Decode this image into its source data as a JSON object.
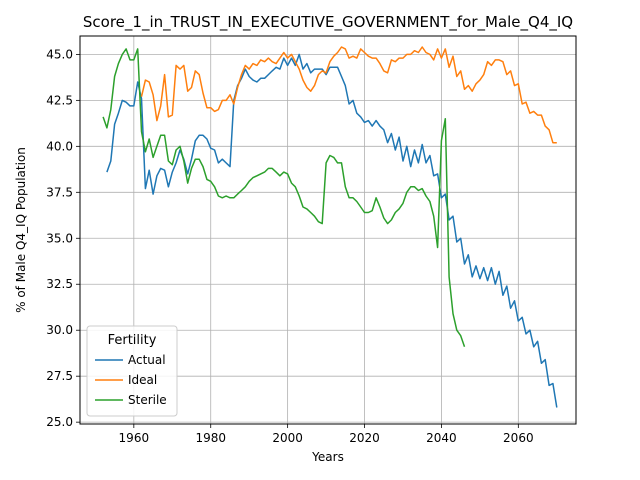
{
  "chart_data": {
    "type": "line",
    "title": "Score_1_in_TRUST_IN_EXECUTIVE_GOVERNMENT_for_Male_Q4_IQ",
    "xlabel": "Years",
    "ylabel": "% of Male Q4_IQ Population",
    "xlim": [
      1946,
      2075
    ],
    "ylim": [
      24.9,
      46.0
    ],
    "xticks": [
      1960,
      1980,
      2000,
      2020,
      2040,
      2060
    ],
    "yticks": [
      25.0,
      27.5,
      30.0,
      32.5,
      35.0,
      37.5,
      40.0,
      42.5,
      45.0
    ],
    "grid": true,
    "legend": {
      "title": "Fertility",
      "placement": "lower-left"
    },
    "series": [
      {
        "name": "Actual",
        "color": "#1f77b4",
        "x": [
          1953,
          1954,
          1955,
          1956,
          1957,
          1958,
          1959,
          1960,
          1961,
          1962,
          1963,
          1964,
          1965,
          1966,
          1967,
          1968,
          1969,
          1970,
          1971,
          1972,
          1973,
          1974,
          1975,
          1976,
          1977,
          1978,
          1979,
          1980,
          1981,
          1982,
          1983,
          1984,
          1985,
          1986,
          1987,
          1988,
          1989,
          1990,
          1991,
          1992,
          1993,
          1994,
          1995,
          1996,
          1997,
          1998,
          1999,
          2000,
          2001,
          2002,
          2003,
          2004,
          2005,
          2006,
          2007,
          2008,
          2009,
          2010,
          2011,
          2012,
          2013,
          2014,
          2015,
          2016,
          2017,
          2018,
          2019,
          2020,
          2021,
          2022,
          2023,
          2024,
          2025,
          2026,
          2027,
          2028,
          2029,
          2030,
          2031,
          2032,
          2033,
          2034,
          2035,
          2036,
          2037,
          2038,
          2039,
          2040,
          2041,
          2042,
          2043,
          2044,
          2045,
          2046,
          2047,
          2048,
          2049,
          2050,
          2051,
          2052,
          2053,
          2054,
          2055,
          2056,
          2057,
          2058,
          2059,
          2060,
          2061,
          2062,
          2063,
          2064,
          2065,
          2066,
          2067,
          2068,
          2069,
          2070
        ],
        "y": [
          38.6,
          39.2,
          41.2,
          41.8,
          42.5,
          42.4,
          42.2,
          42.2,
          43.5,
          42.6,
          37.7,
          38.7,
          37.4,
          38.4,
          38.8,
          38.7,
          37.8,
          38.6,
          39.1,
          39.8,
          39.3,
          38.5,
          39.3,
          40.3,
          40.6,
          40.6,
          40.4,
          39.9,
          39.8,
          39.1,
          39.3,
          39.1,
          38.9,
          42.5,
          43.3,
          43.7,
          44.2,
          43.8,
          43.6,
          43.5,
          43.7,
          43.7,
          43.9,
          44.1,
          44.3,
          44.2,
          44.8,
          44.4,
          44.8,
          44.4,
          45.0,
          44.2,
          44.5,
          44.0,
          44.2,
          44.2,
          44.2,
          43.9,
          44.3,
          44.3,
          44.3,
          43.8,
          43.3,
          42.3,
          42.5,
          41.8,
          41.6,
          41.3,
          41.4,
          41.1,
          41.4,
          41.1,
          40.9,
          40.2,
          40.7,
          39.8,
          40.5,
          39.2,
          40.0,
          38.9,
          39.8,
          39.1,
          40.1,
          39.1,
          39.5,
          38.4,
          38.5,
          37.2,
          37.4,
          36.0,
          36.2,
          34.8,
          35.0,
          33.6,
          34.1,
          32.9,
          33.5,
          32.8,
          33.4,
          32.7,
          33.4,
          32.5,
          33.2,
          31.9,
          32.4,
          31.2,
          31.6,
          30.5,
          30.7,
          29.8,
          30.0,
          29.1,
          29.4,
          28.2,
          28.4,
          27.0,
          27.1,
          25.8
        ]
      },
      {
        "name": "Ideal",
        "color": "#ff7f0e",
        "x": [
          1962,
          1963,
          1964,
          1965,
          1966,
          1967,
          1968,
          1969,
          1970,
          1971,
          1972,
          1973,
          1974,
          1975,
          1976,
          1977,
          1978,
          1979,
          1980,
          1981,
          1982,
          1983,
          1984,
          1985,
          1986,
          1987,
          1988,
          1989,
          1990,
          1991,
          1992,
          1993,
          1994,
          1995,
          1996,
          1997,
          1998,
          1999,
          2000,
          2001,
          2002,
          2003,
          2004,
          2005,
          2006,
          2007,
          2008,
          2009,
          2010,
          2011,
          2012,
          2013,
          2014,
          2015,
          2016,
          2017,
          2018,
          2019,
          2020,
          2021,
          2022,
          2023,
          2024,
          2025,
          2026,
          2027,
          2028,
          2029,
          2030,
          2031,
          2032,
          2033,
          2034,
          2035,
          2036,
          2037,
          2038,
          2039,
          2040,
          2041,
          2042,
          2043,
          2044,
          2045,
          2046,
          2047,
          2048,
          2049,
          2050,
          2051,
          2052,
          2053,
          2054,
          2055,
          2056,
          2057,
          2058,
          2059,
          2060,
          2061,
          2062,
          2063,
          2064,
          2065,
          2066,
          2067,
          2068,
          2069,
          2070
        ],
        "y": [
          42.7,
          43.6,
          43.5,
          42.8,
          41.4,
          42.2,
          43.9,
          41.6,
          41.7,
          44.4,
          44.2,
          44.4,
          43.0,
          43.2,
          44.1,
          43.9,
          42.9,
          42.1,
          42.1,
          41.9,
          42.0,
          42.5,
          42.5,
          42.8,
          42.3,
          43.2,
          43.9,
          44.4,
          44.2,
          44.5,
          44.4,
          44.7,
          44.6,
          44.8,
          44.6,
          44.5,
          44.8,
          45.1,
          44.8,
          45.0,
          44.6,
          44.2,
          43.6,
          43.2,
          43.0,
          43.3,
          43.9,
          44.1,
          44.0,
          44.6,
          44.9,
          45.1,
          45.4,
          45.3,
          44.8,
          44.9,
          44.8,
          45.3,
          45.1,
          44.9,
          44.8,
          44.8,
          44.5,
          44.1,
          44.0,
          44.7,
          44.6,
          44.8,
          44.8,
          45.0,
          45.0,
          45.2,
          45.1,
          45.4,
          45.1,
          45.0,
          44.7,
          45.3,
          44.8,
          45.3,
          44.3,
          44.9,
          43.8,
          44.1,
          43.1,
          43.3,
          43.0,
          43.4,
          43.6,
          43.9,
          44.6,
          44.4,
          44.7,
          44.7,
          44.6,
          43.9,
          44.1,
          43.3,
          43.4,
          42.3,
          42.4,
          41.8,
          41.9,
          41.7,
          41.7,
          41.1,
          40.9,
          40.2,
          40.2
        ]
      },
      {
        "name": "Sterile",
        "color": "#2ca02c",
        "x": [
          1952,
          1953,
          1954,
          1955,
          1956,
          1957,
          1958,
          1959,
          1960,
          1961,
          1962,
          1963,
          1964,
          1965,
          1966,
          1967,
          1968,
          1969,
          1970,
          1971,
          1972,
          1973,
          1974,
          1975,
          1976,
          1977,
          1978,
          1979,
          1980,
          1981,
          1982,
          1983,
          1984,
          1985,
          1986,
          1987,
          1988,
          1989,
          1990,
          1991,
          1992,
          1993,
          1994,
          1995,
          1996,
          1997,
          1998,
          1999,
          2000,
          2001,
          2002,
          2003,
          2004,
          2005,
          2006,
          2007,
          2008,
          2009,
          2010,
          2011,
          2012,
          2013,
          2014,
          2015,
          2016,
          2017,
          2018,
          2019,
          2020,
          2021,
          2022,
          2023,
          2024,
          2025,
          2026,
          2027,
          2028,
          2029,
          2030,
          2031,
          2032,
          2033,
          2034,
          2035,
          2036,
          2037,
          2038,
          2039,
          2040,
          2041,
          2042,
          2043,
          2044,
          2045,
          2046
        ],
        "y": [
          41.6,
          41.0,
          42.0,
          43.8,
          44.5,
          45.0,
          45.3,
          44.7,
          44.7,
          45.3,
          40.8,
          39.7,
          40.4,
          39.4,
          40.0,
          40.6,
          40.6,
          39.2,
          39.0,
          39.8,
          40.0,
          39.2,
          38.0,
          38.8,
          39.3,
          39.3,
          38.9,
          38.2,
          38.1,
          37.8,
          37.3,
          37.2,
          37.3,
          37.2,
          37.2,
          37.4,
          37.6,
          37.8,
          38.1,
          38.3,
          38.4,
          38.5,
          38.6,
          38.8,
          38.8,
          38.6,
          38.4,
          38.6,
          38.5,
          38.0,
          37.8,
          37.3,
          36.7,
          36.6,
          36.4,
          36.2,
          35.9,
          35.8,
          39.1,
          39.5,
          39.4,
          39.1,
          39.1,
          37.8,
          37.2,
          37.2,
          37.0,
          36.7,
          36.4,
          36.4,
          36.5,
          37.2,
          36.7,
          36.1,
          35.8,
          36.0,
          36.4,
          36.6,
          36.9,
          37.5,
          37.8,
          37.8,
          37.6,
          37.7,
          37.3,
          37.0,
          36.2,
          34.5,
          40.3,
          41.5,
          32.9,
          30.9,
          30.0,
          29.7,
          29.1
        ]
      }
    ]
  }
}
